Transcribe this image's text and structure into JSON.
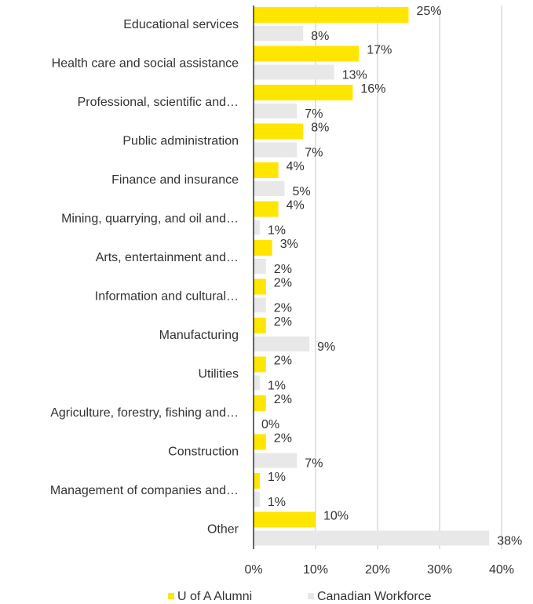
{
  "chart_data": {
    "type": "bar",
    "orientation": "horizontal",
    "categories": [
      "Educational services",
      "Health care and social assistance",
      "Professional, scientific and…",
      "Public administration",
      "Finance and insurance",
      "Mining, quarrying, and oil and…",
      "Arts, entertainment and…",
      "Information and cultural…",
      "Manufacturing",
      "Utilities",
      "Agriculture, forestry, fishing and…",
      "Construction",
      "Management of companies and…",
      "Other"
    ],
    "series": [
      {
        "name": "U of A Alumni",
        "color": "#ffe600",
        "values": [
          25,
          17,
          16,
          8,
          4,
          4,
          3,
          2,
          2,
          2,
          2,
          2,
          1,
          10
        ],
        "value_labels": [
          "25%",
          "17%",
          "16%",
          "8%",
          "4%",
          "4%",
          "3%",
          "2%",
          "2%",
          "2%",
          "2%",
          "2%",
          "1%",
          "10%"
        ]
      },
      {
        "name": "Canadian Workforce",
        "color": "#e8e8e8",
        "values": [
          8,
          13,
          7,
          7,
          5,
          1,
          2,
          2,
          9,
          1,
          0,
          7,
          1,
          38
        ],
        "value_labels": [
          "8%",
          "13%",
          "7%",
          "7%",
          "5%",
          "1%",
          "2%",
          "2%",
          "9%",
          "1%",
          "0%",
          "7%",
          "1%",
          "38%"
        ]
      }
    ],
    "xlim": [
      0,
      40
    ],
    "xticks": [
      {
        "value": 0,
        "label": "0%"
      },
      {
        "value": 10,
        "label": "10%"
      },
      {
        "value": 20,
        "label": "20%"
      },
      {
        "value": 30,
        "label": "30%"
      },
      {
        "value": 40,
        "label": "40%"
      }
    ],
    "grid": true,
    "legend": "bottom"
  }
}
